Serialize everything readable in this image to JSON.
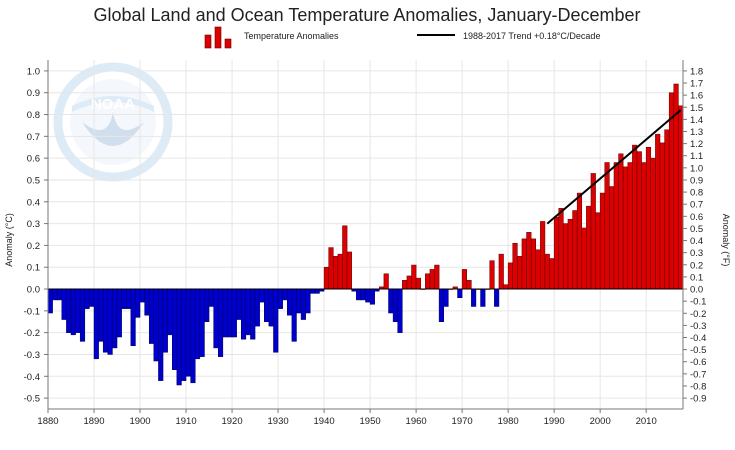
{
  "chart_data": {
    "type": "bar",
    "title": "Global Land and Ocean Temperature Anomalies, January-December",
    "ylabel": "Anomaly (°C)",
    "ylabel_right": "Anomaly (°F)",
    "xlabel": "",
    "watermark": "NOAA",
    "legend": {
      "bars_label": "Temperature Anomalies",
      "trend_label": "1988-2017 Trend +0.18°C/Decade",
      "placement": "top"
    },
    "x_start": 1880,
    "x_end": 2017,
    "ylim": [
      -0.55,
      1.05
    ],
    "ylim_right": [
      -0.99,
      1.89
    ],
    "xticks": [
      1880,
      1890,
      1900,
      1910,
      1920,
      1930,
      1940,
      1950,
      1960,
      1970,
      1980,
      1990,
      2000,
      2010
    ],
    "yticks": [
      -0.5,
      -0.4,
      -0.3,
      -0.2,
      -0.1,
      0.0,
      0.1,
      0.2,
      0.3,
      0.4,
      0.5,
      0.6,
      0.7,
      0.8,
      0.9,
      1.0
    ],
    "yticks_right": [
      -0.9,
      -0.8,
      -0.7,
      -0.6,
      -0.5,
      -0.4,
      -0.3,
      -0.2,
      -0.1,
      0.0,
      0.1,
      0.2,
      0.3,
      0.4,
      0.5,
      0.6,
      0.7,
      0.8,
      0.9,
      1.0,
      1.1,
      1.2,
      1.3,
      1.4,
      1.5,
      1.6,
      1.7,
      1.8
    ],
    "grid": true,
    "colors": {
      "positive": "#dd0000",
      "negative": "#0000cc",
      "trend": "#000000",
      "grid": "#e6e6e6"
    },
    "values": [
      -0.11,
      -0.05,
      -0.05,
      -0.14,
      -0.2,
      -0.21,
      -0.2,
      -0.24,
      -0.09,
      -0.08,
      -0.32,
      -0.24,
      -0.29,
      -0.3,
      -0.27,
      -0.22,
      -0.09,
      -0.09,
      -0.26,
      -0.13,
      -0.06,
      -0.12,
      -0.25,
      -0.33,
      -0.42,
      -0.29,
      -0.21,
      -0.37,
      -0.44,
      -0.42,
      -0.4,
      -0.43,
      -0.32,
      -0.31,
      -0.15,
      -0.08,
      -0.27,
      -0.31,
      -0.22,
      -0.22,
      -0.22,
      -0.14,
      -0.23,
      -0.21,
      -0.23,
      -0.17,
      -0.06,
      -0.15,
      -0.17,
      -0.29,
      -0.09,
      -0.05,
      -0.12,
      -0.24,
      -0.11,
      -0.14,
      -0.11,
      -0.02,
      -0.02,
      -0.01,
      0.1,
      0.19,
      0.15,
      0.16,
      0.29,
      0.17,
      -0.01,
      -0.05,
      -0.05,
      -0.06,
      -0.07,
      -0.01,
      0.01,
      0.07,
      -0.11,
      -0.15,
      -0.2,
      0.04,
      0.06,
      0.11,
      0.05,
      0.0,
      0.07,
      0.09,
      0.11,
      -0.15,
      -0.08,
      0.0,
      0.01,
      -0.04,
      0.09,
      0.04,
      -0.08,
      0.0,
      -0.08,
      0.0,
      0.13,
      -0.08,
      0.16,
      0.02,
      0.12,
      0.21,
      0.15,
      0.23,
      0.26,
      0.23,
      0.18,
      0.31,
      0.16,
      0.14,
      0.33,
      0.37,
      0.3,
      0.32,
      0.36,
      0.44,
      0.28,
      0.38,
      0.53,
      0.35,
      0.44,
      0.58,
      0.47,
      0.58,
      0.62,
      0.56,
      0.58,
      0.66,
      0.63,
      0.58,
      0.65,
      0.6,
      0.71,
      0.67,
      0.73,
      0.9,
      0.94,
      0.84
    ],
    "trend": {
      "start_year": 1988,
      "end_year": 2017,
      "start_value": 0.3,
      "end_value": 0.82
    }
  }
}
